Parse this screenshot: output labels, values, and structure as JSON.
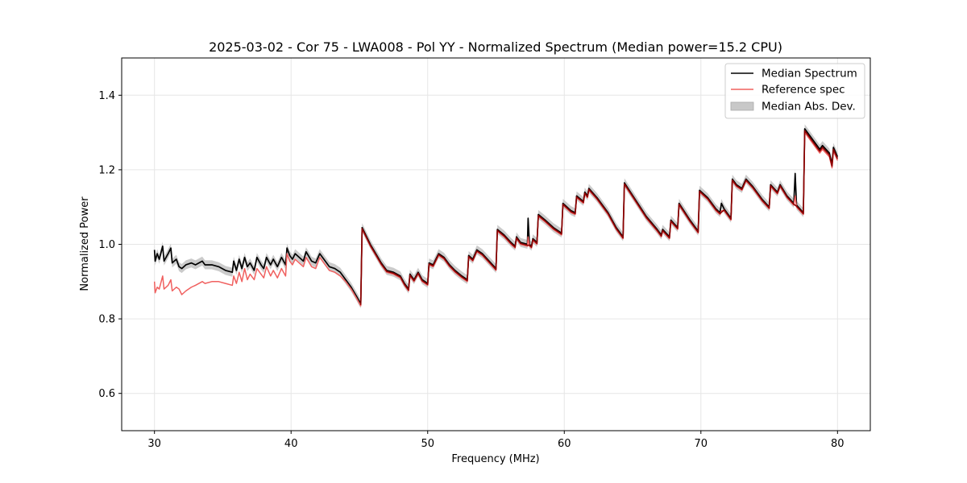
{
  "chart_data": {
    "type": "line",
    "title": "2025-03-02 - Cor 75 - LWA008 - Pol YY - Normalized Spectrum (Median power=15.2 CPU)",
    "xlabel": "Frequency (MHz)",
    "ylabel": "Normalized Power",
    "xlim": [
      27.6,
      82.4
    ],
    "ylim": [
      0.5,
      1.5
    ],
    "xticks": [
      30,
      40,
      50,
      60,
      70,
      80
    ],
    "yticks": [
      0.6,
      0.8,
      1.0,
      1.2,
      1.4
    ],
    "xtick_labels": [
      "30",
      "40",
      "50",
      "60",
      "70",
      "80"
    ],
    "ytick_labels": [
      "0.6",
      "0.8",
      "1.0",
      "1.2",
      "1.4"
    ],
    "grid": true,
    "legend_position": "top-right",
    "legend": [
      "Median Spectrum",
      "Reference spec",
      "Median Abs. Dev."
    ],
    "mad_halfwidth": 0.012,
    "series": [
      {
        "name": "Median Spectrum",
        "color": "#000000",
        "points": [
          [
            30.0,
            0.985
          ],
          [
            30.05,
            0.955
          ],
          [
            30.2,
            0.975
          ],
          [
            30.35,
            0.96
          ],
          [
            30.6,
            0.995
          ],
          [
            30.7,
            0.955
          ],
          [
            31.0,
            0.975
          ],
          [
            31.2,
            0.99
          ],
          [
            31.3,
            0.95
          ],
          [
            31.6,
            0.96
          ],
          [
            31.8,
            0.94
          ],
          [
            32.0,
            0.935
          ],
          [
            32.3,
            0.945
          ],
          [
            32.7,
            0.95
          ],
          [
            33.0,
            0.945
          ],
          [
            33.5,
            0.955
          ],
          [
            33.7,
            0.945
          ],
          [
            34.2,
            0.945
          ],
          [
            34.7,
            0.94
          ],
          [
            35.2,
            0.93
          ],
          [
            35.7,
            0.925
          ],
          [
            35.8,
            0.955
          ],
          [
            36.0,
            0.93
          ],
          [
            36.2,
            0.96
          ],
          [
            36.4,
            0.935
          ],
          [
            36.6,
            0.965
          ],
          [
            36.8,
            0.94
          ],
          [
            37.0,
            0.95
          ],
          [
            37.3,
            0.93
          ],
          [
            37.5,
            0.965
          ],
          [
            37.8,
            0.945
          ],
          [
            38.0,
            0.935
          ],
          [
            38.2,
            0.965
          ],
          [
            38.5,
            0.945
          ],
          [
            38.7,
            0.96
          ],
          [
            39.0,
            0.94
          ],
          [
            39.3,
            0.965
          ],
          [
            39.6,
            0.945
          ],
          [
            39.7,
            0.99
          ],
          [
            39.9,
            0.97
          ],
          [
            40.1,
            0.96
          ],
          [
            40.3,
            0.975
          ],
          [
            40.6,
            0.965
          ],
          [
            40.9,
            0.955
          ],
          [
            41.1,
            0.98
          ],
          [
            41.5,
            0.955
          ],
          [
            41.8,
            0.95
          ],
          [
            42.1,
            0.975
          ],
          [
            42.4,
            0.96
          ],
          [
            42.8,
            0.94
          ],
          [
            43.2,
            0.935
          ],
          [
            43.6,
            0.925
          ],
          [
            44.0,
            0.905
          ],
          [
            44.4,
            0.885
          ],
          [
            44.8,
            0.86
          ],
          [
            45.1,
            0.84
          ],
          [
            45.2,
            1.045
          ],
          [
            45.8,
            1.0
          ],
          [
            46.2,
            0.975
          ],
          [
            46.6,
            0.95
          ],
          [
            47.0,
            0.93
          ],
          [
            47.5,
            0.925
          ],
          [
            48.0,
            0.915
          ],
          [
            48.3,
            0.895
          ],
          [
            48.6,
            0.88
          ],
          [
            48.7,
            0.92
          ],
          [
            49.0,
            0.905
          ],
          [
            49.3,
            0.925
          ],
          [
            49.6,
            0.905
          ],
          [
            50.0,
            0.895
          ],
          [
            50.1,
            0.95
          ],
          [
            50.4,
            0.945
          ],
          [
            50.6,
            0.96
          ],
          [
            50.8,
            0.975
          ],
          [
            51.2,
            0.965
          ],
          [
            51.6,
            0.945
          ],
          [
            52.0,
            0.93
          ],
          [
            52.5,
            0.915
          ],
          [
            52.9,
            0.905
          ],
          [
            53.0,
            0.97
          ],
          [
            53.3,
            0.96
          ],
          [
            53.6,
            0.985
          ],
          [
            54.0,
            0.975
          ],
          [
            54.5,
            0.955
          ],
          [
            55.0,
            0.935
          ],
          [
            55.1,
            1.04
          ],
          [
            55.6,
            1.025
          ],
          [
            56.1,
            1.005
          ],
          [
            56.4,
            0.995
          ],
          [
            56.5,
            1.02
          ],
          [
            56.8,
            1.005
          ],
          [
            57.3,
            1.0
          ],
          [
            57.35,
            1.07
          ],
          [
            57.45,
            1.0
          ],
          [
            57.6,
            0.995
          ],
          [
            57.7,
            1.015
          ],
          [
            58.0,
            1.005
          ],
          [
            58.1,
            1.08
          ],
          [
            58.6,
            1.065
          ],
          [
            59.2,
            1.045
          ],
          [
            59.8,
            1.03
          ],
          [
            59.9,
            1.11
          ],
          [
            60.5,
            1.09
          ],
          [
            60.8,
            1.085
          ],
          [
            60.9,
            1.13
          ],
          [
            61.4,
            1.115
          ],
          [
            61.5,
            1.14
          ],
          [
            61.7,
            1.13
          ],
          [
            61.8,
            1.15
          ],
          [
            62.4,
            1.125
          ],
          [
            63.2,
            1.085
          ],
          [
            63.8,
            1.045
          ],
          [
            64.3,
            1.02
          ],
          [
            64.4,
            1.165
          ],
          [
            65.2,
            1.12
          ],
          [
            66.0,
            1.075
          ],
          [
            66.8,
            1.04
          ],
          [
            67.1,
            1.025
          ],
          [
            67.2,
            1.04
          ],
          [
            67.7,
            1.02
          ],
          [
            67.8,
            1.065
          ],
          [
            68.3,
            1.045
          ],
          [
            68.4,
            1.11
          ],
          [
            69.2,
            1.065
          ],
          [
            69.8,
            1.035
          ],
          [
            69.9,
            1.145
          ],
          [
            70.5,
            1.125
          ],
          [
            71.1,
            1.095
          ],
          [
            71.4,
            1.085
          ],
          [
            71.5,
            1.11
          ],
          [
            71.7,
            1.095
          ],
          [
            72.2,
            1.07
          ],
          [
            72.3,
            1.175
          ],
          [
            72.6,
            1.16
          ],
          [
            73.0,
            1.15
          ],
          [
            73.3,
            1.175
          ],
          [
            73.8,
            1.155
          ],
          [
            74.5,
            1.12
          ],
          [
            75.0,
            1.1
          ],
          [
            75.1,
            1.16
          ],
          [
            75.6,
            1.14
          ],
          [
            75.8,
            1.16
          ],
          [
            76.3,
            1.13
          ],
          [
            76.8,
            1.11
          ],
          [
            76.9,
            1.19
          ],
          [
            77.0,
            1.105
          ],
          [
            77.5,
            1.085
          ],
          [
            77.6,
            1.31
          ],
          [
            78.2,
            1.28
          ],
          [
            78.7,
            1.255
          ],
          [
            78.9,
            1.265
          ],
          [
            79.4,
            1.245
          ],
          [
            79.6,
            1.215
          ],
          [
            79.7,
            1.26
          ],
          [
            80.0,
            1.235
          ]
        ]
      },
      {
        "name": "Reference spec",
        "color": "#f0605f",
        "points": [
          [
            30.0,
            0.9
          ],
          [
            30.05,
            0.87
          ],
          [
            30.2,
            0.885
          ],
          [
            30.35,
            0.88
          ],
          [
            30.6,
            0.915
          ],
          [
            30.7,
            0.88
          ],
          [
            31.0,
            0.89
          ],
          [
            31.2,
            0.905
          ],
          [
            31.3,
            0.875
          ],
          [
            31.6,
            0.885
          ],
          [
            31.8,
            0.88
          ],
          [
            32.0,
            0.865
          ],
          [
            32.3,
            0.875
          ],
          [
            32.7,
            0.885
          ],
          [
            33.0,
            0.89
          ],
          [
            33.5,
            0.9
          ],
          [
            33.7,
            0.895
          ],
          [
            34.2,
            0.9
          ],
          [
            34.7,
            0.9
          ],
          [
            35.2,
            0.895
          ],
          [
            35.7,
            0.89
          ],
          [
            35.8,
            0.915
          ],
          [
            36.0,
            0.895
          ],
          [
            36.2,
            0.925
          ],
          [
            36.4,
            0.9
          ],
          [
            36.6,
            0.935
          ],
          [
            36.8,
            0.905
          ],
          [
            37.0,
            0.92
          ],
          [
            37.3,
            0.905
          ],
          [
            37.5,
            0.935
          ],
          [
            37.8,
            0.92
          ],
          [
            38.0,
            0.91
          ],
          [
            38.2,
            0.94
          ],
          [
            38.5,
            0.915
          ],
          [
            38.7,
            0.93
          ],
          [
            39.0,
            0.91
          ],
          [
            39.3,
            0.935
          ],
          [
            39.6,
            0.915
          ],
          [
            39.7,
            0.975
          ],
          [
            39.9,
            0.955
          ],
          [
            40.1,
            0.945
          ],
          [
            40.3,
            0.96
          ],
          [
            40.6,
            0.95
          ],
          [
            40.9,
            0.94
          ],
          [
            41.1,
            0.965
          ],
          [
            41.5,
            0.94
          ],
          [
            41.8,
            0.935
          ],
          [
            42.1,
            0.965
          ],
          [
            42.4,
            0.95
          ],
          [
            42.8,
            0.93
          ],
          [
            43.2,
            0.925
          ],
          [
            43.6,
            0.915
          ],
          [
            44.0,
            0.9
          ],
          [
            44.4,
            0.88
          ],
          [
            44.8,
            0.855
          ],
          [
            45.1,
            0.835
          ],
          [
            45.2,
            1.04
          ],
          [
            45.8,
            0.995
          ],
          [
            46.2,
            0.97
          ],
          [
            46.6,
            0.945
          ],
          [
            47.0,
            0.925
          ],
          [
            47.5,
            0.92
          ],
          [
            48.0,
            0.91
          ],
          [
            48.3,
            0.89
          ],
          [
            48.6,
            0.875
          ],
          [
            48.7,
            0.915
          ],
          [
            49.0,
            0.9
          ],
          [
            49.3,
            0.92
          ],
          [
            49.6,
            0.9
          ],
          [
            50.0,
            0.89
          ],
          [
            50.1,
            0.945
          ],
          [
            50.4,
            0.94
          ],
          [
            50.6,
            0.955
          ],
          [
            50.8,
            0.97
          ],
          [
            51.2,
            0.96
          ],
          [
            51.6,
            0.94
          ],
          [
            52.0,
            0.925
          ],
          [
            52.5,
            0.91
          ],
          [
            52.9,
            0.9
          ],
          [
            53.0,
            0.965
          ],
          [
            53.3,
            0.955
          ],
          [
            53.6,
            0.98
          ],
          [
            54.0,
            0.97
          ],
          [
            54.5,
            0.95
          ],
          [
            55.0,
            0.93
          ],
          [
            55.1,
            1.035
          ],
          [
            55.6,
            1.02
          ],
          [
            56.1,
            1.0
          ],
          [
            56.4,
            0.99
          ],
          [
            56.5,
            1.015
          ],
          [
            56.8,
            1.0
          ],
          [
            57.3,
            0.995
          ],
          [
            57.35,
            1.02
          ],
          [
            57.45,
            0.995
          ],
          [
            57.6,
            0.99
          ],
          [
            57.7,
            1.01
          ],
          [
            58.0,
            1.0
          ],
          [
            58.1,
            1.075
          ],
          [
            58.6,
            1.06
          ],
          [
            59.2,
            1.04
          ],
          [
            59.8,
            1.025
          ],
          [
            59.9,
            1.105
          ],
          [
            60.5,
            1.085
          ],
          [
            60.8,
            1.08
          ],
          [
            60.9,
            1.125
          ],
          [
            61.4,
            1.11
          ],
          [
            61.5,
            1.135
          ],
          [
            61.7,
            1.125
          ],
          [
            61.8,
            1.145
          ],
          [
            62.4,
            1.12
          ],
          [
            63.2,
            1.08
          ],
          [
            63.8,
            1.04
          ],
          [
            64.3,
            1.015
          ],
          [
            64.4,
            1.16
          ],
          [
            65.2,
            1.115
          ],
          [
            66.0,
            1.07
          ],
          [
            66.8,
            1.035
          ],
          [
            67.1,
            1.02
          ],
          [
            67.2,
            1.035
          ],
          [
            67.7,
            1.015
          ],
          [
            67.8,
            1.06
          ],
          [
            68.3,
            1.04
          ],
          [
            68.4,
            1.105
          ],
          [
            69.2,
            1.06
          ],
          [
            69.8,
            1.03
          ],
          [
            69.9,
            1.14
          ],
          [
            70.5,
            1.12
          ],
          [
            71.1,
            1.09
          ],
          [
            71.4,
            1.08
          ],
          [
            71.5,
            1.09
          ],
          [
            71.7,
            1.09
          ],
          [
            72.2,
            1.065
          ],
          [
            72.3,
            1.17
          ],
          [
            72.6,
            1.155
          ],
          [
            73.0,
            1.145
          ],
          [
            73.3,
            1.17
          ],
          [
            73.8,
            1.15
          ],
          [
            74.5,
            1.115
          ],
          [
            75.0,
            1.095
          ],
          [
            75.1,
            1.155
          ],
          [
            75.6,
            1.135
          ],
          [
            75.8,
            1.155
          ],
          [
            76.3,
            1.125
          ],
          [
            76.8,
            1.105
          ],
          [
            76.9,
            1.13
          ],
          [
            77.0,
            1.1
          ],
          [
            77.5,
            1.08
          ],
          [
            77.6,
            1.3
          ],
          [
            78.2,
            1.27
          ],
          [
            78.7,
            1.245
          ],
          [
            78.9,
            1.255
          ],
          [
            79.4,
            1.235
          ],
          [
            79.6,
            1.205
          ],
          [
            79.7,
            1.25
          ],
          [
            80.0,
            1.225
          ]
        ]
      }
    ]
  }
}
